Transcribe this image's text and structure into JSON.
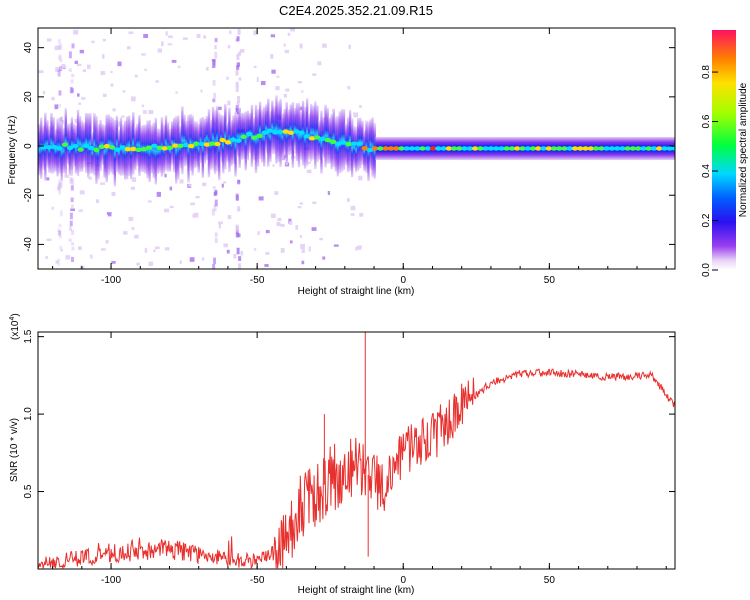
{
  "title": "C2E4.2025.352.21.09.R15",
  "chart_data": [
    {
      "type": "heatmap",
      "name": "spectrogram",
      "xlabel": "Height of straight line (km)",
      "ylabel": "Frequency (Hz)",
      "xlim": [
        -125,
        93
      ],
      "ylim": [
        -50,
        48
      ],
      "xticks": [
        -100,
        -50,
        0,
        50
      ],
      "yticks": [
        -40,
        -20,
        0,
        20,
        40
      ],
      "colorbar": {
        "label": "Normalized spectral amplitude",
        "range": [
          0,
          0.97
        ],
        "ticks": [
          0.0,
          0.2,
          0.4,
          0.6,
          0.8
        ]
      },
      "ridge": [
        {
          "x": -125,
          "y": 0
        },
        {
          "x": -100,
          "y": -1
        },
        {
          "x": -80,
          "y": 0
        },
        {
          "x": -60,
          "y": 2
        },
        {
          "x": -45,
          "y": 6
        },
        {
          "x": -35,
          "y": 5
        },
        {
          "x": -25,
          "y": 2
        },
        {
          "x": -18,
          "y": 1
        },
        {
          "x": -12,
          "y": -1
        },
        {
          "x": 0,
          "y": -1
        },
        {
          "x": 20,
          "y": -1
        },
        {
          "x": 50,
          "y": -1
        },
        {
          "x": 93,
          "y": -1
        }
      ]
    },
    {
      "type": "line",
      "name": "snr",
      "xlabel": "Height of straight line (km)",
      "ylabel": "SNR (10 * v/v)",
      "multiplier_label": "(x10",
      "multiplier_exp": "4",
      "xlim": [
        -125,
        93
      ],
      "ylim": [
        0,
        1.53
      ],
      "xticks": [
        -100,
        -50,
        0,
        50
      ],
      "yticks": [
        0.5,
        1.0,
        1.5
      ],
      "color": "#e8302e",
      "trend": [
        {
          "x": -125,
          "y": 0.03
        },
        {
          "x": -100,
          "y": 0.1
        },
        {
          "x": -80,
          "y": 0.13
        },
        {
          "x": -60,
          "y": 0.06
        },
        {
          "x": -50,
          "y": 0.05
        },
        {
          "x": -42,
          "y": 0.1
        },
        {
          "x": -35,
          "y": 0.4
        },
        {
          "x": -25,
          "y": 0.58
        },
        {
          "x": -15,
          "y": 0.65
        },
        {
          "x": -8,
          "y": 0.55
        },
        {
          "x": 0,
          "y": 0.75
        },
        {
          "x": 10,
          "y": 0.85
        },
        {
          "x": 20,
          "y": 1.05
        },
        {
          "x": 30,
          "y": 1.2
        },
        {
          "x": 40,
          "y": 1.26
        },
        {
          "x": 50,
          "y": 1.27
        },
        {
          "x": 70,
          "y": 1.24
        },
        {
          "x": 85,
          "y": 1.25
        },
        {
          "x": 93,
          "y": 1.05
        }
      ],
      "annotations": [
        {
          "x": -13,
          "y": 1.53
        },
        {
          "x": -12,
          "y": 0.08
        },
        {
          "x": -27,
          "y": 1.0
        }
      ]
    }
  ]
}
